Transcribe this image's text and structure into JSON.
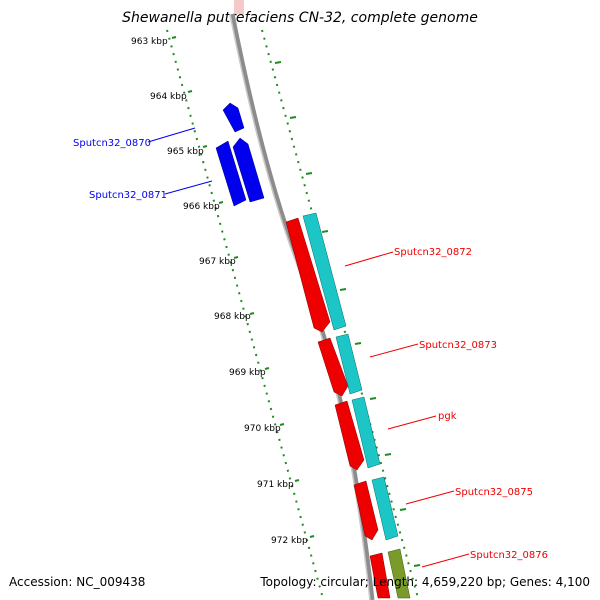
{
  "title": "Shewanella putrefaciens CN-32, complete genome",
  "footer": {
    "accession": "Accession: NC_009438",
    "topology": "Topology: circular; Length: 4,659,220 bp; Genes: 4,100"
  },
  "ruler": {
    "labels": [
      "963 kbp",
      "964 kbp",
      "965 kbp",
      "966 kbp",
      "967 kbp",
      "968 kbp",
      "969 kbp",
      "970 kbp",
      "971 kbp",
      "972 kbp"
    ]
  },
  "genes": [
    {
      "label": "Sputcn32_0870",
      "strand": "reverse",
      "color": "#0000ee"
    },
    {
      "label": "Sputcn32_0871",
      "strand": "reverse",
      "color": "#0000ee"
    },
    {
      "label": "Sputcn32_0872",
      "strand": "forward",
      "color": "#ee0000"
    },
    {
      "label": "Sputcn32_0873",
      "strand": "forward",
      "color": "#ee0000"
    },
    {
      "label": "pgk",
      "strand": "forward",
      "color": "#ee0000"
    },
    {
      "label": "Sputcn32_0875",
      "strand": "forward",
      "color": "#ee0000"
    },
    {
      "label": "Sputcn32_0876",
      "strand": "forward",
      "color": "#ee0000"
    }
  ],
  "colors": {
    "backbone": "#8c8c8c",
    "ruler_ticks": "#228b22",
    "reverse_gene": "#0000ee",
    "forward_gene": "#ee0000",
    "cds_feature": "#1cc6c6",
    "other_feature": "#7a9a2a"
  }
}
